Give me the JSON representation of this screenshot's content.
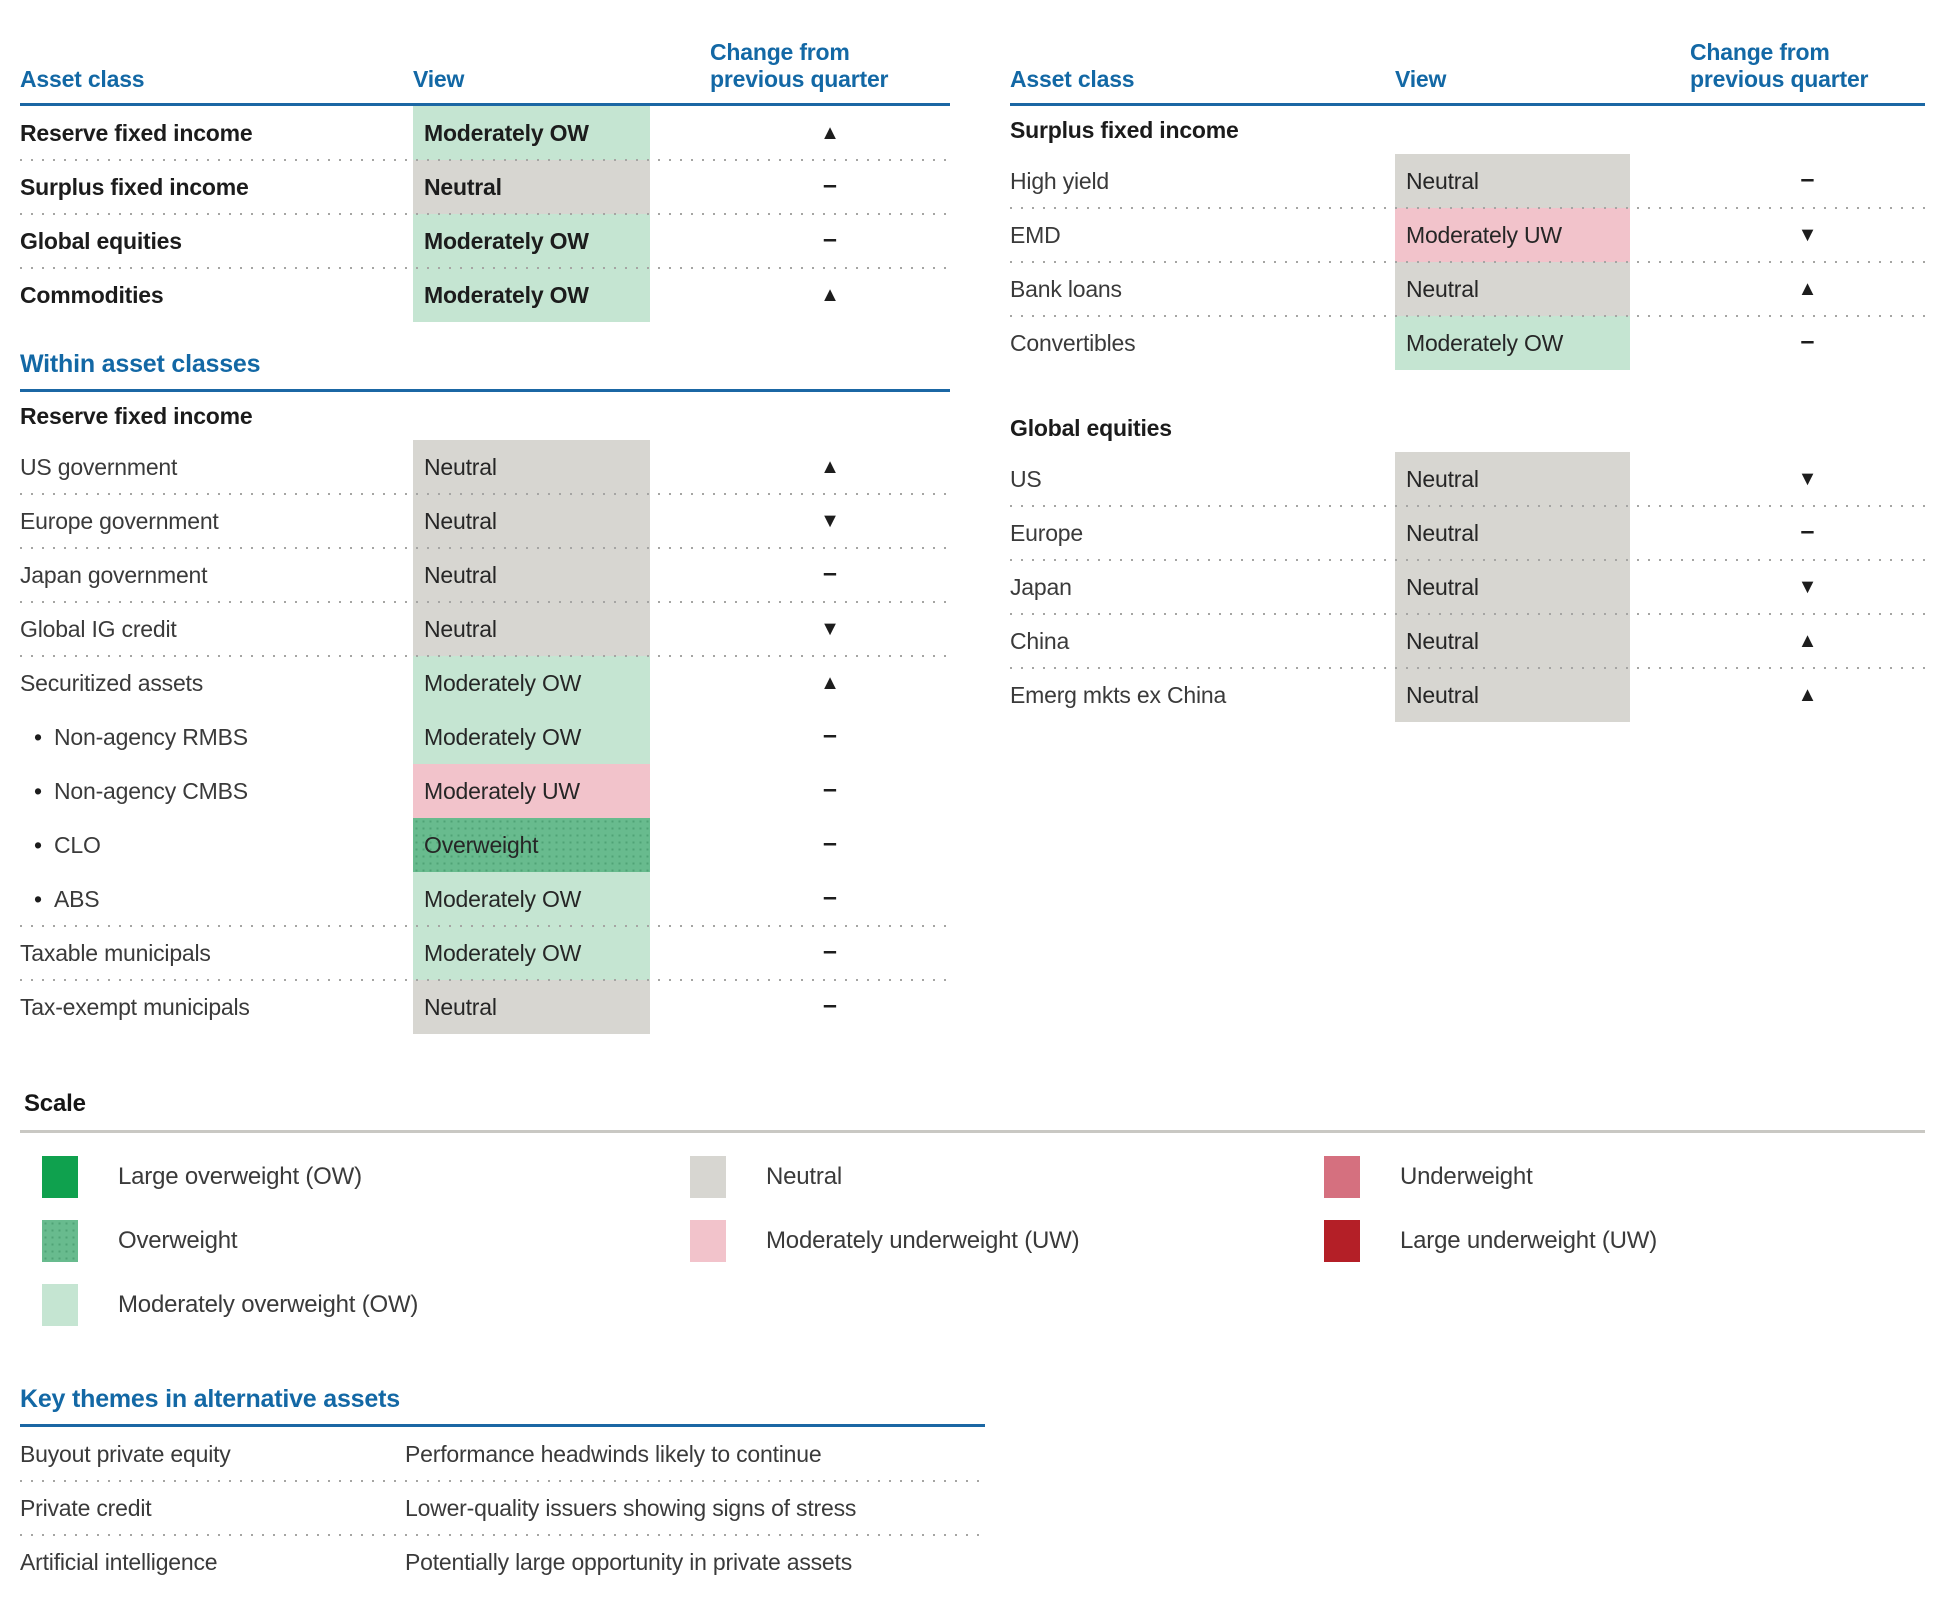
{
  "palette": {
    "heading_blue": "#1368a5",
    "rule_blue": "#1b67a4",
    "large_overweight_green": "#0fa14e",
    "overweight_green": "#68bb8e",
    "moderately_overweight_green": "#c5e5d2",
    "neutral_gray": "#d7d6d1",
    "moderately_underweight_pink": "#f2c3cb",
    "underweight_rose": "#d5707f",
    "large_underweight_red": "#b41f27",
    "text_dark": "#1c1c1c",
    "text_body": "#3a3a3a"
  },
  "glyphs": {
    "up": "▲",
    "down": "▼",
    "flat": "–"
  },
  "left_table": {
    "headers": {
      "asset_class": "Asset class",
      "view": "View",
      "change": "Change from\nprevious quarter"
    },
    "top_rows": [
      {
        "label": "Reserve fixed income",
        "view": "Moderately OW",
        "change": "▲"
      },
      {
        "label": "Surplus fixed income",
        "view": "Neutral",
        "change": "–"
      },
      {
        "label": "Global equities",
        "view": "Moderately OW",
        "change": "–"
      },
      {
        "label": "Commodities",
        "view": "Moderately OW",
        "change": "▲"
      }
    ],
    "within_heading": "Within asset classes",
    "within_section": "Reserve fixed income",
    "within_rows": [
      {
        "label": "US government",
        "view": "Neutral",
        "change": "▲"
      },
      {
        "label": "Europe government",
        "view": "Neutral",
        "change": "▼"
      },
      {
        "label": "Japan government",
        "view": "Neutral",
        "change": "–"
      },
      {
        "label": "Global IG credit",
        "view": "Neutral",
        "change": "▼"
      },
      {
        "label": "Securitized assets",
        "view": "Moderately OW",
        "change": "▲"
      },
      {
        "label": "Non-agency RMBS",
        "view": "Moderately OW",
        "change": "–"
      },
      {
        "label": "Non-agency CMBS",
        "view": "Moderately UW",
        "change": "–"
      },
      {
        "label": "CLO",
        "view": "Overweight",
        "change": "–"
      },
      {
        "label": "ABS",
        "view": "Moderately OW",
        "change": "–"
      },
      {
        "label": "Taxable municipals",
        "view": "Moderately OW",
        "change": "–"
      },
      {
        "label": "Tax-exempt municipals",
        "view": "Neutral",
        "change": "–"
      }
    ]
  },
  "right_table": {
    "headers": {
      "asset_class": "Asset class",
      "view": "View",
      "change": "Change from\nprevious quarter"
    },
    "sections": [
      {
        "title": "Surplus fixed income",
        "rows": [
          {
            "label": "High yield",
            "view": "Neutral",
            "change": "–"
          },
          {
            "label": "EMD",
            "view": "Moderately UW",
            "change": "▼"
          },
          {
            "label": "Bank loans",
            "view": "Neutral",
            "change": "▲"
          },
          {
            "label": "Convertibles",
            "view": "Moderately OW",
            "change": "–"
          }
        ]
      },
      {
        "title": "Global equities",
        "rows": [
          {
            "label": "US",
            "view": "Neutral",
            "change": "▼"
          },
          {
            "label": "Europe",
            "view": "Neutral",
            "change": "–"
          },
          {
            "label": "Japan",
            "view": "Neutral",
            "change": "▼"
          },
          {
            "label": "China",
            "view": "Neutral",
            "change": "▲"
          },
          {
            "label": "Emerg mkts ex China",
            "view": "Neutral",
            "change": "▲"
          }
        ]
      }
    ]
  },
  "scale": {
    "title": "Scale",
    "columns": [
      {
        "items": [
          {
            "label": "Large overweight (OW)",
            "color": "#0fa14e"
          },
          {
            "label": "Overweight",
            "color": "#68bb8e"
          },
          {
            "label": "Moderately overweight (OW)",
            "color": "#c5e5d2"
          }
        ]
      },
      {
        "items": [
          {
            "label": "Neutral",
            "color": "#d7d6d1"
          },
          {
            "label": "Moderately underweight (UW)",
            "color": "#f2c3cb"
          }
        ]
      },
      {
        "items": [
          {
            "label": "Underweight",
            "color": "#d5707f"
          },
          {
            "label": "Large underweight (UW)",
            "color": "#b41f27"
          }
        ]
      }
    ]
  },
  "key_themes": {
    "title": "Key themes in alternative assets",
    "rows": [
      {
        "term": "Buyout private equity",
        "description": "Performance headwinds likely to continue"
      },
      {
        "term": "Private credit",
        "description": "Lower-quality issuers showing signs of stress"
      },
      {
        "term": "Artificial intelligence",
        "description": "Potentially large opportunity in private assets"
      }
    ]
  }
}
